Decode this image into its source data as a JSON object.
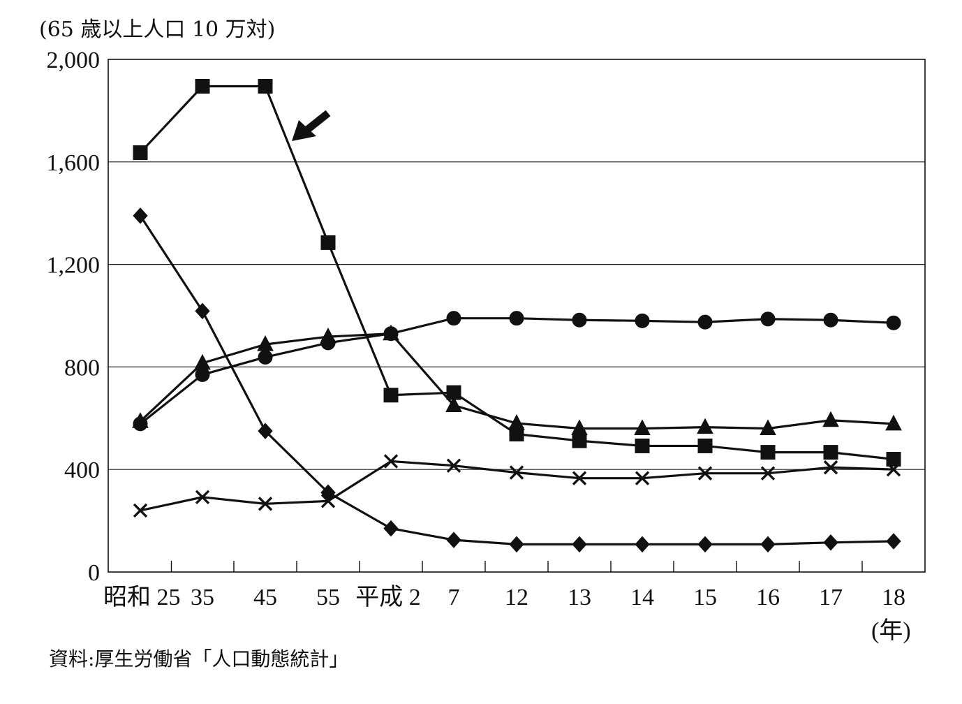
{
  "chart_data": {
    "type": "line",
    "unit_label": "(65 歳以上人口 10 万対)",
    "x_unit_label": "(年)",
    "source": "資料:厚生労働省「人口動態統計」",
    "categories": [
      "昭和 25",
      "35",
      "45",
      "55",
      "平成 2",
      "7",
      "12",
      "13",
      "14",
      "15",
      "16",
      "17",
      "18"
    ],
    "yticks": [
      "0",
      "400",
      "800",
      "1,200",
      "1,600",
      "2,000"
    ],
    "ylim": [
      0,
      2000
    ],
    "grid": "horizontal",
    "arrow_annotation": "points to the square-marker series",
    "series": [
      {
        "marker": "square",
        "values": [
          1636,
          1895,
          1895,
          1285,
          690,
          700,
          538,
          512,
          492,
          492,
          467,
          467,
          440
        ]
      },
      {
        "marker": "diamond",
        "values": [
          1390,
          1018,
          550,
          310,
          170,
          125,
          108,
          108,
          108,
          108,
          108,
          115,
          120
        ]
      },
      {
        "marker": "circle",
        "values": [
          578,
          770,
          838,
          894,
          930,
          990,
          990,
          983,
          980,
          975,
          987,
          983,
          972
        ]
      },
      {
        "marker": "triangle",
        "values": [
          588,
          815,
          888,
          918,
          930,
          650,
          580,
          560,
          560,
          565,
          560,
          592,
          578
        ]
      },
      {
        "marker": "cross",
        "values": [
          240,
          292,
          266,
          277,
          432,
          415,
          388,
          366,
          366,
          385,
          385,
          408,
          400
        ]
      }
    ]
  }
}
